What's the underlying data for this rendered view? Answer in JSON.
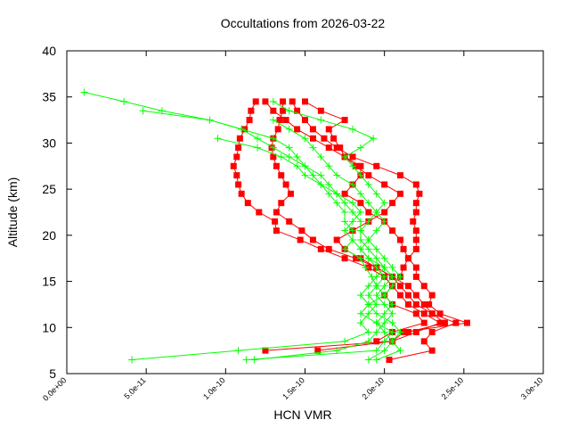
{
  "chart_data": {
    "type": "line",
    "title": "Occultations from 2026-03-22",
    "xlabel": "HCN VMR",
    "ylabel": "Altitude (km)",
    "xlim": [
      0,
      3e-10
    ],
    "ylim": [
      5,
      40
    ],
    "xticks": [
      "0.0e+00",
      "5.0e-11",
      "1.0e-10",
      "1.5e-10",
      "2.0e-10",
      "2.5e-10",
      "3.0e-10"
    ],
    "xtick_values": [
      0,
      5e-11,
      1e-10,
      1.5e-10,
      2e-10,
      2.5e-10,
      3e-10
    ],
    "yticks": [
      "5",
      "10",
      "15",
      "20",
      "25",
      "30",
      "35",
      "40"
    ],
    "ytick_values": [
      5,
      10,
      15,
      20,
      25,
      30,
      35,
      40
    ],
    "grid": false,
    "x_scale": 1e-10,
    "altitudes": [
      6.5,
      7.5,
      8.5,
      9.5,
      10.5,
      11.5,
      12.5,
      13.5,
      14.5,
      15.5,
      16.5,
      17.5,
      18.5,
      19.5,
      20.5,
      21.5,
      22.5,
      23.5,
      24.5,
      25.5,
      26.5,
      27.5,
      28.5,
      29.5,
      30.5,
      31.5,
      32.5,
      33.5,
      34.5,
      35.5
    ],
    "series": [
      {
        "color": "#ff0000",
        "marker": "square",
        "values": [
          null,
          1.25,
          2.05,
          2.2,
          2.35,
          2.25,
          2.15,
          2.1,
          2.05,
          2.0,
          1.9,
          1.75,
          1.6,
          1.47,
          1.32,
          1.31,
          1.21,
          1.14,
          1.1,
          1.08,
          1.07,
          1.05,
          1.07,
          1.08,
          1.09,
          1.12,
          1.15,
          1.16,
          1.19,
          null
        ]
      },
      {
        "color": "#ff0000",
        "marker": "square",
        "values": [
          2.03,
          2.3,
          2.25,
          2.3,
          2.45,
          2.3,
          2.2,
          2.15,
          2.1,
          2.05,
          1.95,
          1.82,
          1.65,
          1.55,
          1.48,
          1.4,
          1.32,
          1.35,
          1.41,
          1.38,
          1.35,
          1.32,
          1.3,
          1.29,
          1.3,
          1.33,
          1.34,
          1.36,
          1.36,
          null
        ]
      },
      {
        "color": "#ff0000",
        "marker": "square",
        "values": [
          null,
          1.58,
          2.05,
          2.12,
          2.52,
          2.35,
          2.28,
          2.3,
          2.25,
          2.2,
          2.2,
          2.15,
          2.2,
          2.2,
          2.2,
          2.18,
          2.2,
          2.2,
          2.22,
          2.2,
          2.1,
          1.95,
          1.8,
          1.7,
          1.62,
          1.55,
          1.5,
          1.45,
          1.42,
          null
        ]
      },
      {
        "color": "#ff0000",
        "marker": "square",
        "values": [
          null,
          null,
          1.95,
          2.05,
          2.25,
          2.2,
          2.05,
          2.0,
          2.05,
          2.1,
          2.12,
          2.15,
          2.12,
          2.1,
          2.05,
          2.0,
          1.9,
          1.85,
          1.75,
          1.8,
          1.85,
          1.85,
          1.75,
          1.72,
          1.68,
          1.65,
          1.75,
          1.6,
          1.5,
          null
        ]
      },
      {
        "color": "#ff0000",
        "marker": "square",
        "values": [
          null,
          null,
          null,
          2.15,
          2.38,
          2.3,
          2.25,
          2.2,
          2.15,
          2.05,
          1.95,
          1.85,
          1.75,
          1.7,
          1.8,
          1.9,
          2.0,
          2.05,
          2.1,
          2.0,
          1.9,
          1.82,
          1.75,
          1.65,
          1.55,
          1.45,
          1.38,
          1.3,
          1.25,
          null
        ]
      },
      {
        "color": "#00ff00",
        "marker": "plus",
        "values": [
          0.41,
          1.08,
          1.75,
          1.9,
          1.85,
          1.9,
          1.95,
          1.9,
          1.95,
          1.92,
          1.88,
          1.85,
          1.75,
          1.8,
          1.8,
          1.75,
          1.75,
          1.7,
          1.65,
          1.6,
          1.55,
          1.5,
          1.45,
          1.4,
          1.3,
          1.1,
          0.9,
          0.6,
          0.36,
          0.11
        ]
      },
      {
        "color": "#00ff00",
        "marker": "plus",
        "values": [
          1.13,
          1.95,
          2.0,
          2.05,
          1.95,
          1.85,
          1.9,
          2.0,
          2.05,
          2.1,
          2.05,
          2.0,
          1.95,
          1.9,
          1.85,
          1.85,
          1.8,
          1.75,
          1.7,
          1.65,
          1.6,
          1.5,
          1.4,
          1.3,
          1.2,
          1.1,
          0.9,
          0.48,
          null,
          null
        ]
      },
      {
        "color": "#00ff00",
        "marker": "plus",
        "values": [
          1.18,
          1.7,
          1.9,
          1.95,
          2.0,
          2.05,
          2.0,
          1.95,
          2.0,
          2.05,
          2.0,
          1.9,
          1.85,
          1.8,
          1.75,
          1.8,
          1.85,
          1.8,
          1.7,
          1.6,
          1.5,
          1.45,
          1.35,
          1.2,
          0.95,
          null,
          null,
          null,
          null,
          null
        ]
      },
      {
        "color": "#00ff00",
        "marker": "plus",
        "values": [
          1.9,
          2.0,
          2.05,
          2.1,
          2.05,
          1.95,
          1.9,
          1.85,
          1.9,
          1.95,
          2.0,
          1.95,
          1.9,
          1.85,
          1.85,
          1.9,
          1.95,
          2.0,
          1.95,
          1.9,
          1.85,
          1.8,
          1.75,
          1.85,
          1.93,
          1.8,
          1.6,
          1.4,
          1.3,
          null
        ]
      },
      {
        "color": "#00ff00",
        "marker": "plus",
        "values": [
          1.95,
          2.1,
          2.05,
          2.0,
          1.95,
          2.0,
          2.05,
          2.0,
          1.95,
          2.0,
          1.95,
          1.9,
          1.85,
          1.9,
          1.95,
          2.0,
          1.95,
          1.9,
          1.85,
          1.8,
          1.7,
          1.65,
          1.6,
          1.55,
          1.5,
          1.4,
          1.3,
          null,
          null,
          null
        ]
      }
    ]
  }
}
